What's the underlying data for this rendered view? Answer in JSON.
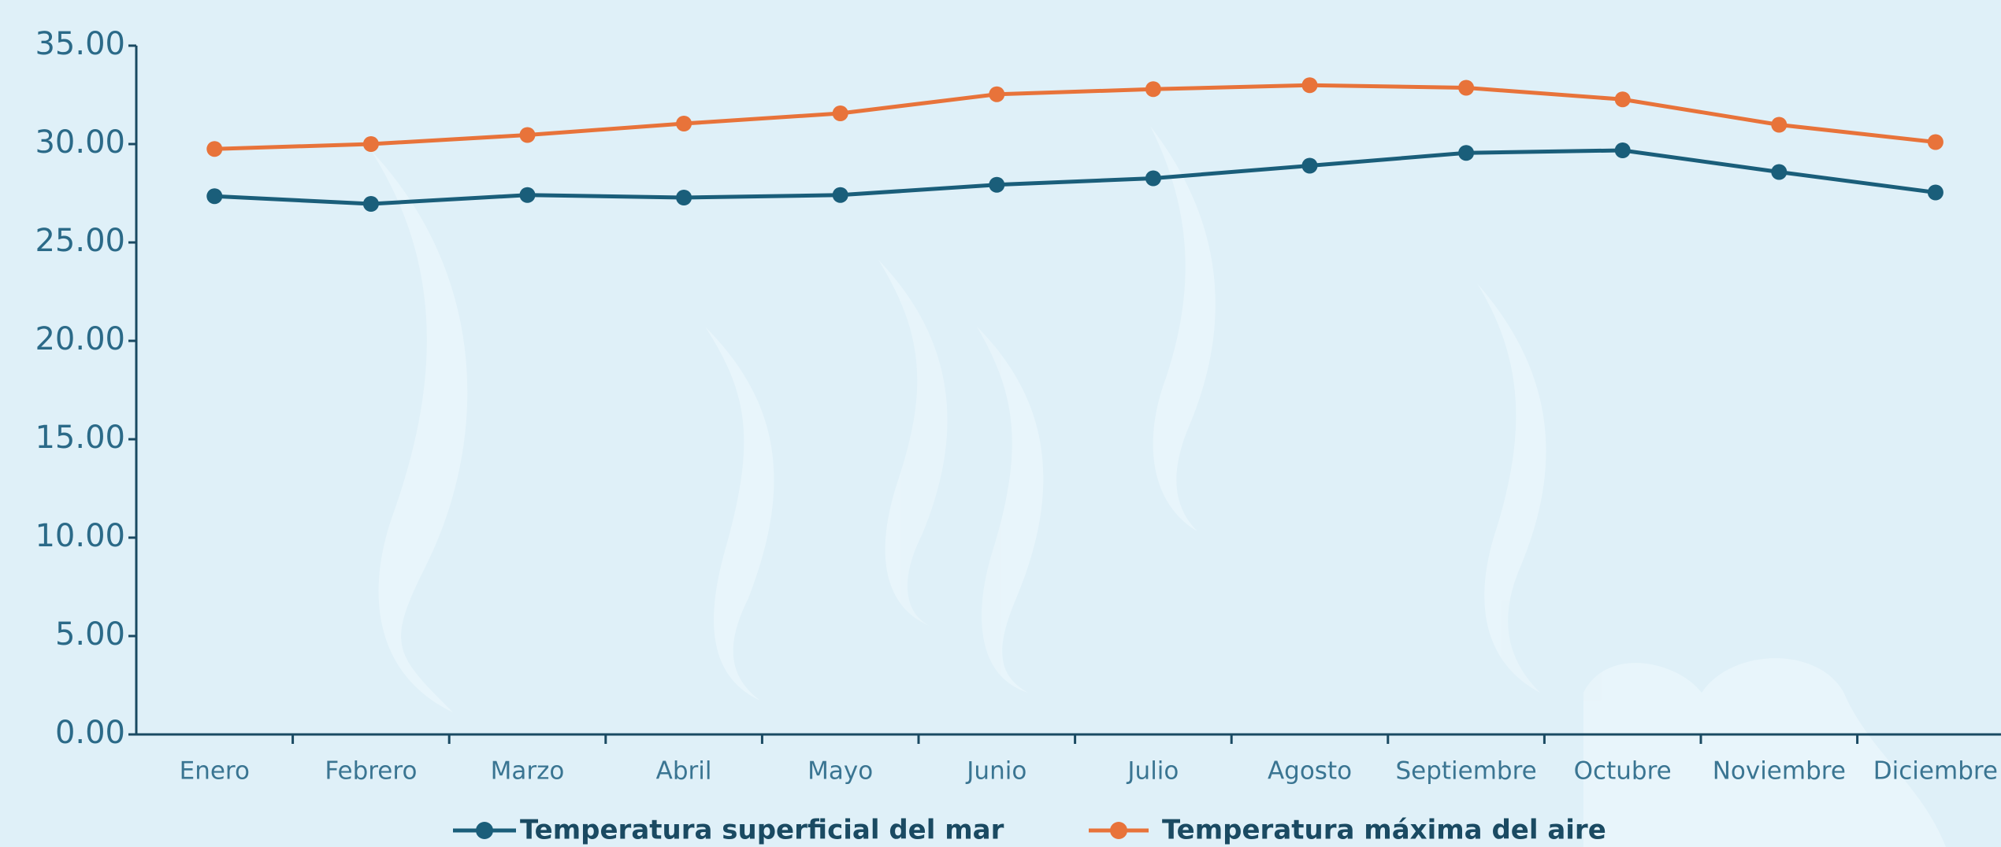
{
  "chart_data": {
    "type": "line",
    "categories": [
      "Enero",
      "Febrero",
      "Marzo",
      "Abril",
      "Mayo",
      "Junio",
      "Julio",
      "Agosto",
      "Septiembre",
      "Octubre",
      "Noviembre",
      "Diciembre"
    ],
    "series": [
      {
        "name": "Temperatura superficial del mar",
        "color": "#1a5e7a",
        "values": [
          27.35,
          26.96,
          27.41,
          27.28,
          27.41,
          27.93,
          28.26,
          28.9,
          29.55,
          29.68,
          28.58,
          27.54
        ]
      },
      {
        "name": "Temperatura máxima del aire",
        "color": "#e8733a",
        "values": [
          29.75,
          30.0,
          30.46,
          31.04,
          31.56,
          32.53,
          32.79,
          32.99,
          32.86,
          32.27,
          30.98,
          30.1
        ]
      }
    ],
    "ylim": [
      0,
      35
    ],
    "yticks": [
      {
        "value": 0,
        "label": "0.00"
      },
      {
        "value": 5,
        "label": "5.00"
      },
      {
        "value": 10,
        "label": "10.00"
      },
      {
        "value": 15,
        "label": "15.00"
      },
      {
        "value": 20,
        "label": "20.00"
      },
      {
        "value": 25,
        "label": "25.00"
      },
      {
        "value": 30,
        "label": "30.00"
      },
      {
        "value": 35,
        "label": "35.00"
      }
    ],
    "grid": false,
    "legend": "bottom"
  }
}
